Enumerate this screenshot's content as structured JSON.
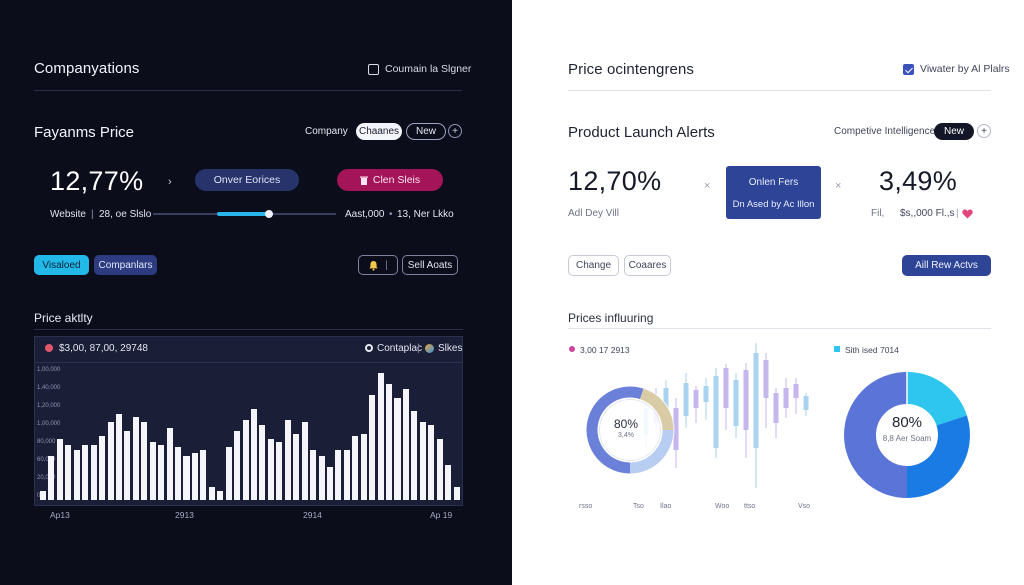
{
  "left": {
    "header": {
      "title": "Companyations",
      "option_label": "Coumain la Slgner"
    },
    "section": {
      "title": "Fayanms Price",
      "company_label": "Company",
      "pill_changes": "Chaanes",
      "pill_new": "New",
      "plus": "+"
    },
    "metric": {
      "value": "12,77%",
      "arrow": "›",
      "btn_primary": "Onver Eorices",
      "btn_secondary": "Clen Sleis",
      "btn_secondary_icon": "trash-icon"
    },
    "slider": {
      "left_label_1": "Website",
      "left_sep": "|",
      "left_label_2": "28, oe Slslo",
      "right_label_1": "Aast,000",
      "right_sep": "•",
      "right_label_2": "13, Ner Lkko",
      "fill_fraction": 0.37
    },
    "actions": {
      "tab_1": "Visaloed",
      "tab_2": "Companlars",
      "bell_icon": "bell-icon",
      "sell_alerts": "Sell Aoats"
    },
    "chart": {
      "title": "Price aktlty",
      "legend_left": "$3,00, 87,00, 29748",
      "legend_mid": "Contaplac",
      "legend_right": "Slkes",
      "y_ticks": [
        "1,00,000",
        "1,40,000",
        "1,20,000",
        "1,00,000",
        "80,000",
        "60,000",
        "20,000",
        "0"
      ],
      "x_ticks": [
        "Ap13",
        "2913",
        "2914",
        "Ap 19"
      ]
    },
    "chart_data": {
      "type": "bar",
      "series": [
        {
          "values": [
            8,
            40,
            55,
            50,
            45,
            50,
            50,
            58,
            70,
            78,
            62,
            75,
            70,
            52,
            50,
            65,
            48,
            40,
            42,
            45,
            12,
            8,
            48,
            62,
            72,
            82,
            68,
            55,
            52,
            72,
            60,
            70,
            45,
            40,
            30,
            45,
            45,
            58,
            60,
            95,
            115,
            105,
            92,
            100,
            80,
            70,
            68,
            55,
            32,
            12
          ]
        }
      ]
    }
  },
  "right": {
    "header": {
      "title": "Price ocintengrens",
      "option_label": "Viwater by Al Plalrs"
    },
    "section": {
      "title": "Product Launch Alerts",
      "label": "Competive Intelligence",
      "pill_new": "New",
      "plus": "+"
    },
    "metrics": {
      "value_1": "12,70%",
      "sub_1": "Adl Dey Vill",
      "sep_1": "×",
      "card_line_1": "Onlen Fers",
      "card_line_2": "Dn Ased by Ac Illon",
      "sep_2": "×",
      "value_2": "3,49%",
      "sub_2a": "Fil,",
      "sub_2b": "$s,,000 Fl.,s",
      "sub_2_sep": "|",
      "sub_2_icon": "heart-icon"
    },
    "actions": {
      "change": "Change",
      "compares": "Coaares",
      "add_btn": "Aill Rew Actvs"
    },
    "charts_section": {
      "title": "Prices influuring",
      "legend_1": "3,00 17 2913",
      "legend_1_color": "#d0459b",
      "legend_2": "Sith ised 7014",
      "legend_2_color": "#2ec6ef",
      "donut_small_value": "80%",
      "donut_small_sub": "3,4%",
      "donut_big_value": "80%",
      "donut_big_sub": "8,8 Aer Soam",
      "x_ticks": [
        "rsso",
        "Tso",
        "Ilao",
        "Woo",
        "ttso",
        "Vso"
      ]
    },
    "chart_data": [
      {
        "type": "pie",
        "slices": [
          {
            "label": "blue",
            "value": 55,
            "color": "#6a80d9"
          },
          {
            "label": "tan",
            "value": 20,
            "color": "#d9cba6"
          },
          {
            "label": "light",
            "value": 25,
            "color": "#b8cdf2"
          }
        ]
      },
      {
        "type": "pie",
        "slices": [
          {
            "label": "cyan",
            "value": 20,
            "color": "#2ec6ef"
          },
          {
            "label": "blue",
            "value": 30,
            "color": "#1a7be4"
          },
          {
            "label": "indigo",
            "value": 50,
            "color": "#5a74d8"
          }
        ]
      }
    ]
  }
}
